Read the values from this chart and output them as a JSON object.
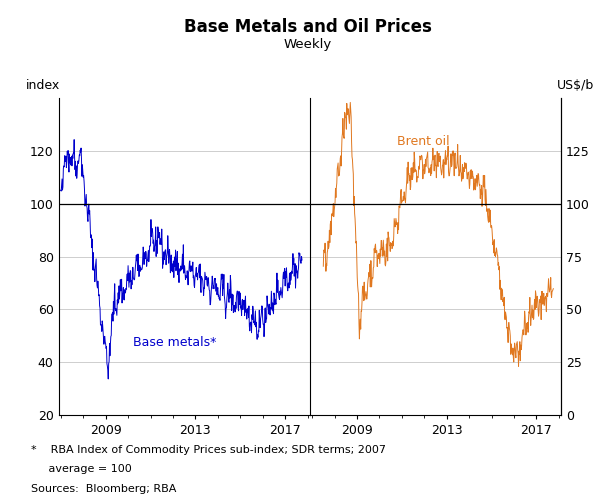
{
  "title": "Base Metals and Oil Prices",
  "subtitle": "Weekly",
  "left_ylabel": "index",
  "right_ylabel": "US$/b",
  "left_ylim": [
    20,
    140
  ],
  "right_ylim": [
    0,
    150
  ],
  "left_yticks": [
    20,
    40,
    60,
    80,
    100,
    120
  ],
  "right_yticks": [
    0,
    25,
    50,
    75,
    100,
    125
  ],
  "xtick_years": [
    2009,
    2013,
    2017
  ],
  "blue_color": "#0000CC",
  "orange_color": "#E07820",
  "base_metals_label": "Base metals*",
  "brent_oil_label": "Brent oil",
  "footnote1": "*    RBA Index of Commodity Prices sub-index; SDR terms; 2007",
  "footnote2": "     average = 100",
  "footnote3": "Sources:  Bloomberg; RBA",
  "grid_color": "#BBBBBB",
  "background_color": "#FFFFFF"
}
